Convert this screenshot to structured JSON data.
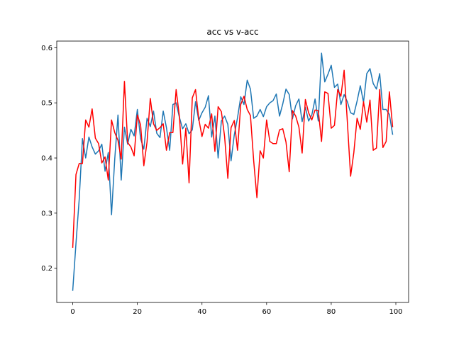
{
  "chart_data": {
    "type": "line",
    "title": "acc vs v-acc",
    "xlabel": "",
    "ylabel": "",
    "xlim": [
      -4.95,
      103.95
    ],
    "ylim": [
      0.138,
      0.612
    ],
    "x_ticks": [
      0,
      20,
      40,
      60,
      80,
      100
    ],
    "x_tick_labels": [
      "0",
      "20",
      "40",
      "60",
      "80",
      "100"
    ],
    "y_ticks": [
      0.2,
      0.3,
      0.4,
      0.5,
      0.6
    ],
    "y_tick_labels": [
      "0.2",
      "0.3",
      "0.4",
      "0.5",
      "0.6"
    ],
    "grid": false,
    "legend": "none",
    "x": [
      0,
      1,
      2,
      3,
      4,
      5,
      6,
      7,
      8,
      9,
      10,
      11,
      12,
      13,
      14,
      15,
      16,
      17,
      18,
      19,
      20,
      21,
      22,
      23,
      24,
      25,
      26,
      27,
      28,
      29,
      30,
      31,
      32,
      33,
      34,
      35,
      36,
      37,
      38,
      39,
      40,
      41,
      42,
      43,
      44,
      45,
      46,
      47,
      48,
      49,
      50,
      51,
      52,
      53,
      54,
      55,
      56,
      57,
      58,
      59,
      60,
      61,
      62,
      63,
      64,
      65,
      66,
      67,
      68,
      69,
      70,
      71,
      72,
      73,
      74,
      75,
      76,
      77,
      78,
      79,
      80,
      81,
      82,
      83,
      84,
      85,
      86,
      87,
      88,
      89,
      90,
      91,
      92,
      93,
      94,
      95,
      96,
      97,
      98,
      99
    ],
    "series": [
      {
        "color": "#1f77b4",
        "values": [
          0.16,
          0.245,
          0.325,
          0.435,
          0.4,
          0.438,
          0.42,
          0.407,
          0.413,
          0.425,
          0.376,
          0.41,
          0.297,
          0.398,
          0.478,
          0.36,
          0.456,
          0.425,
          0.452,
          0.44,
          0.488,
          0.435,
          0.416,
          0.472,
          0.457,
          0.485,
          0.445,
          0.437,
          0.485,
          0.455,
          0.414,
          0.497,
          0.5,
          0.474,
          0.453,
          0.462,
          0.444,
          0.451,
          0.502,
          0.468,
          0.482,
          0.492,
          0.513,
          0.438,
          0.476,
          0.4,
          0.467,
          0.476,
          0.461,
          0.395,
          0.442,
          0.473,
          0.511,
          0.497,
          0.541,
          0.525,
          0.472,
          0.476,
          0.488,
          0.475,
          0.493,
          0.5,
          0.504,
          0.516,
          0.476,
          0.498,
          0.525,
          0.515,
          0.471,
          0.495,
          0.507,
          0.466,
          0.492,
          0.467,
          0.478,
          0.507,
          0.467,
          0.59,
          0.538,
          0.552,
          0.568,
          0.528,
          0.534,
          0.497,
          0.515,
          0.502,
          0.482,
          0.479,
          0.503,
          0.531,
          0.501,
          0.553,
          0.562,
          0.535,
          0.525,
          0.553,
          0.488,
          0.488,
          0.479,
          0.443
        ]
      },
      {
        "color": "#ff0000",
        "values": [
          0.238,
          0.37,
          0.39,
          0.39,
          0.469,
          0.456,
          0.489,
          0.436,
          0.426,
          0.391,
          0.402,
          0.36,
          0.469,
          0.446,
          0.432,
          0.398,
          0.539,
          0.428,
          0.42,
          0.404,
          0.478,
          0.46,
          0.386,
          0.429,
          0.508,
          0.462,
          0.45,
          0.455,
          0.462,
          0.414,
          0.446,
          0.446,
          0.524,
          0.476,
          0.389,
          0.454,
          0.355,
          0.509,
          0.524,
          0.471,
          0.439,
          0.461,
          0.454,
          0.48,
          0.412,
          0.493,
          0.484,
          0.439,
          0.363,
          0.455,
          0.468,
          0.414,
          0.497,
          0.512,
          0.488,
          0.477,
          0.395,
          0.328,
          0.413,
          0.4,
          0.469,
          0.43,
          0.426,
          0.426,
          0.451,
          0.453,
          0.429,
          0.375,
          0.486,
          0.476,
          0.456,
          0.409,
          0.506,
          0.482,
          0.469,
          0.487,
          0.486,
          0.43,
          0.52,
          0.517,
          0.454,
          0.459,
          0.524,
          0.512,
          0.559,
          0.465,
          0.367,
          0.41,
          0.472,
          0.452,
          0.502,
          0.465,
          0.505,
          0.414,
          0.418,
          0.524,
          0.419,
          0.43,
          0.52,
          0.457
        ]
      }
    ]
  }
}
